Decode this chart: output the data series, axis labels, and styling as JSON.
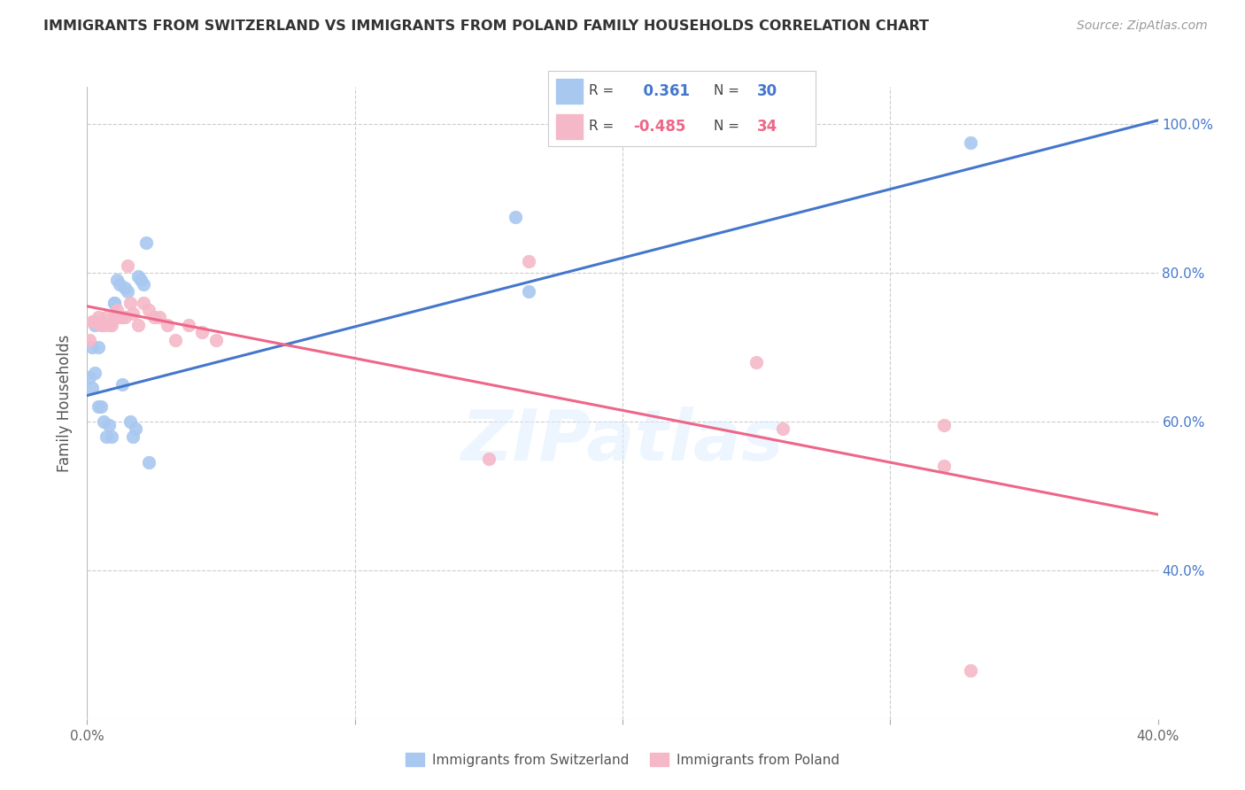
{
  "title": "IMMIGRANTS FROM SWITZERLAND VS IMMIGRANTS FROM POLAND FAMILY HOUSEHOLDS CORRELATION CHART",
  "source": "Source: ZipAtlas.com",
  "ylabel": "Family Households",
  "xlim": [
    0.0,
    0.4
  ],
  "ylim": [
    0.2,
    1.05
  ],
  "yticks": [
    0.4,
    0.6,
    0.8,
    1.0
  ],
  "ytick_labels": [
    "40.0%",
    "60.0%",
    "80.0%",
    "100.0%"
  ],
  "xticks": [
    0.0,
    0.1,
    0.2,
    0.3,
    0.4
  ],
  "xtick_labels": [
    "0.0%",
    "",
    "",
    "",
    "40.0%"
  ],
  "swiss_R": 0.361,
  "swiss_N": 30,
  "poland_R": -0.485,
  "poland_N": 34,
  "swiss_color": "#A8C8F0",
  "poland_color": "#F5B8C8",
  "swiss_line_color": "#4477CC",
  "poland_line_color": "#EE6688",
  "background_color": "#FFFFFF",
  "watermark": "ZIPatlas",
  "swiss_line_x": [
    0.0,
    0.4
  ],
  "swiss_line_y": [
    0.635,
    1.005
  ],
  "poland_line_x": [
    0.0,
    0.4
  ],
  "poland_line_y": [
    0.755,
    0.475
  ],
  "swiss_scatter_x": [
    0.001,
    0.002,
    0.002,
    0.003,
    0.003,
    0.004,
    0.004,
    0.005,
    0.006,
    0.007,
    0.008,
    0.009,
    0.01,
    0.01,
    0.011,
    0.012,
    0.013,
    0.014,
    0.015,
    0.016,
    0.017,
    0.018,
    0.019,
    0.02,
    0.021,
    0.022,
    0.023,
    0.16,
    0.165,
    0.33
  ],
  "swiss_scatter_y": [
    0.66,
    0.7,
    0.645,
    0.73,
    0.665,
    0.7,
    0.62,
    0.62,
    0.6,
    0.58,
    0.595,
    0.58,
    0.76,
    0.76,
    0.79,
    0.785,
    0.65,
    0.78,
    0.775,
    0.6,
    0.58,
    0.59,
    0.795,
    0.79,
    0.785,
    0.84,
    0.545,
    0.875,
    0.775,
    0.975
  ],
  "poland_scatter_x": [
    0.001,
    0.002,
    0.003,
    0.004,
    0.005,
    0.006,
    0.007,
    0.008,
    0.009,
    0.01,
    0.011,
    0.012,
    0.013,
    0.014,
    0.015,
    0.016,
    0.017,
    0.019,
    0.021,
    0.023,
    0.025,
    0.027,
    0.03,
    0.033,
    0.038,
    0.043,
    0.048,
    0.15,
    0.165,
    0.25,
    0.26,
    0.32,
    0.32,
    0.33
  ],
  "poland_scatter_y": [
    0.71,
    0.735,
    0.735,
    0.74,
    0.73,
    0.73,
    0.74,
    0.73,
    0.73,
    0.74,
    0.75,
    0.74,
    0.74,
    0.74,
    0.81,
    0.76,
    0.745,
    0.73,
    0.76,
    0.75,
    0.74,
    0.74,
    0.73,
    0.71,
    0.73,
    0.72,
    0.71,
    0.55,
    0.815,
    0.68,
    0.59,
    0.54,
    0.595,
    0.265
  ]
}
